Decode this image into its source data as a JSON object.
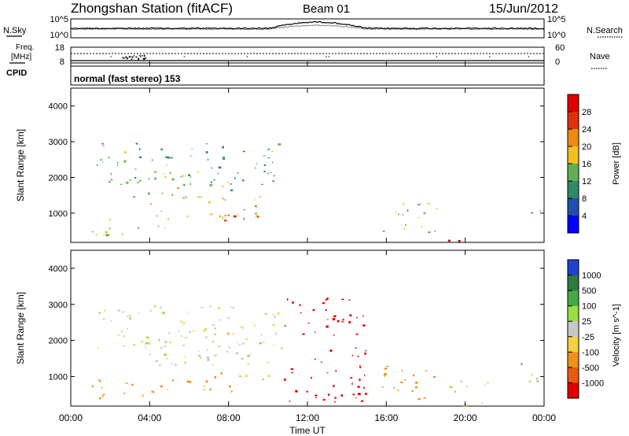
{
  "header": {
    "station": "Zhongshan Station (fitACF)",
    "beam": "Beam 01",
    "date": "15/Jun/2012"
  },
  "noise_panel": {
    "left_label": "N.Sky",
    "right_label": "N.Search",
    "top_tick": "10^5",
    "bottom_tick": "10^0"
  },
  "freq_panel": {
    "left_label_1": "Freq.",
    "left_label_2": "[MHz]",
    "right_label": "Nave",
    "left_ticks": [
      "18",
      "8"
    ],
    "right_ticks": [
      "60",
      "0"
    ]
  },
  "cpid": {
    "label": "CPID",
    "value": "normal (fast stereo) 153"
  },
  "chart_data": [
    {
      "type": "heatmap",
      "title": "",
      "quantity": "Power",
      "ylabel": "Slant Range [km]",
      "xlabel": "",
      "ylim": [
        180,
        4500
      ],
      "xlim": [
        "00:00",
        "24:00"
      ],
      "y_ticks": [
        "1000",
        "2000",
        "3000",
        "4000"
      ],
      "colorbar_label": "Power [dB]",
      "colorbar_ticks": [
        "4",
        "8",
        "12",
        "16",
        "20",
        "24",
        "28"
      ],
      "colorbar_colors": [
        "#0000ff",
        "#1f4fb0",
        "#2f8a6a",
        "#5fb055",
        "#f0c020",
        "#f08a10",
        "#e03010",
        "#e00000"
      ],
      "regions": [
        {
          "t0": 1.3,
          "t1": 10.8,
          "r0": 1800,
          "r1": 3000,
          "level": 12
        },
        {
          "t0": 2.5,
          "t1": 8.5,
          "r0": 1400,
          "r1": 2200,
          "level": 16
        },
        {
          "t0": 4.0,
          "t1": 9.8,
          "r0": 900,
          "r1": 1500,
          "level": 18
        },
        {
          "t0": 1.0,
          "t1": 5.5,
          "r0": 400,
          "r1": 900,
          "level": 16
        },
        {
          "t0": 7.5,
          "t1": 9.5,
          "r0": 800,
          "r1": 1300,
          "level": 24
        },
        {
          "t0": 15.6,
          "t1": 18.6,
          "r0": 400,
          "r1": 1400,
          "level": 14
        },
        {
          "t0": 18.4,
          "t1": 20.0,
          "r0": 180,
          "r1": 400,
          "level": 26
        },
        {
          "t0": 22.8,
          "t1": 24.0,
          "r0": 900,
          "r1": 1400,
          "level": 12
        }
      ]
    },
    {
      "type": "heatmap",
      "title": "",
      "quantity": "Velocity",
      "ylabel": "Slant Range [km]",
      "xlabel": "Time UT",
      "ylim": [
        180,
        4500
      ],
      "xlim": [
        "00:00",
        "24:00"
      ],
      "x_ticks": [
        "00:00",
        "04:00",
        "08:00",
        "12:00",
        "16:00",
        "20:00",
        "00:00"
      ],
      "y_ticks": [
        "1000",
        "2000",
        "3000",
        "4000"
      ],
      "colorbar_label": "Velocity [m s^-1]",
      "colorbar_ticks": [
        "1000",
        "500",
        "100",
        "25",
        "-25",
        "-100",
        "-500",
        "-1000"
      ],
      "colorbar_colors": [
        "#2040d0",
        "#2f7a3f",
        "#44aa44",
        "#99dd44",
        "#c8c8c8",
        "#f5d040",
        "#f0901a",
        "#ea5a10",
        "#e00000"
      ],
      "regions": [
        {
          "t0": 1.3,
          "t1": 10.8,
          "r0": 1800,
          "r1": 3000,
          "level": 0
        },
        {
          "t0": 2.5,
          "t1": 10.0,
          "r0": 1300,
          "r1": 2400,
          "level": 0
        },
        {
          "t0": 1.0,
          "t1": 6.0,
          "r0": 350,
          "r1": 1000,
          "level": -150
        },
        {
          "t0": 6.0,
          "t1": 10.0,
          "r0": 600,
          "r1": 1200,
          "level": -80
        },
        {
          "t0": 10.8,
          "t1": 15.0,
          "r0": 300,
          "r1": 3200,
          "level": -900
        },
        {
          "t0": 15.6,
          "t1": 18.6,
          "r0": 300,
          "r1": 1400,
          "level": -150
        },
        {
          "t0": 18.6,
          "t1": 21.2,
          "r0": 180,
          "r1": 900,
          "level": 0
        },
        {
          "t0": 22.8,
          "t1": 24.0,
          "r0": 700,
          "r1": 1400,
          "level": 50
        }
      ]
    }
  ]
}
